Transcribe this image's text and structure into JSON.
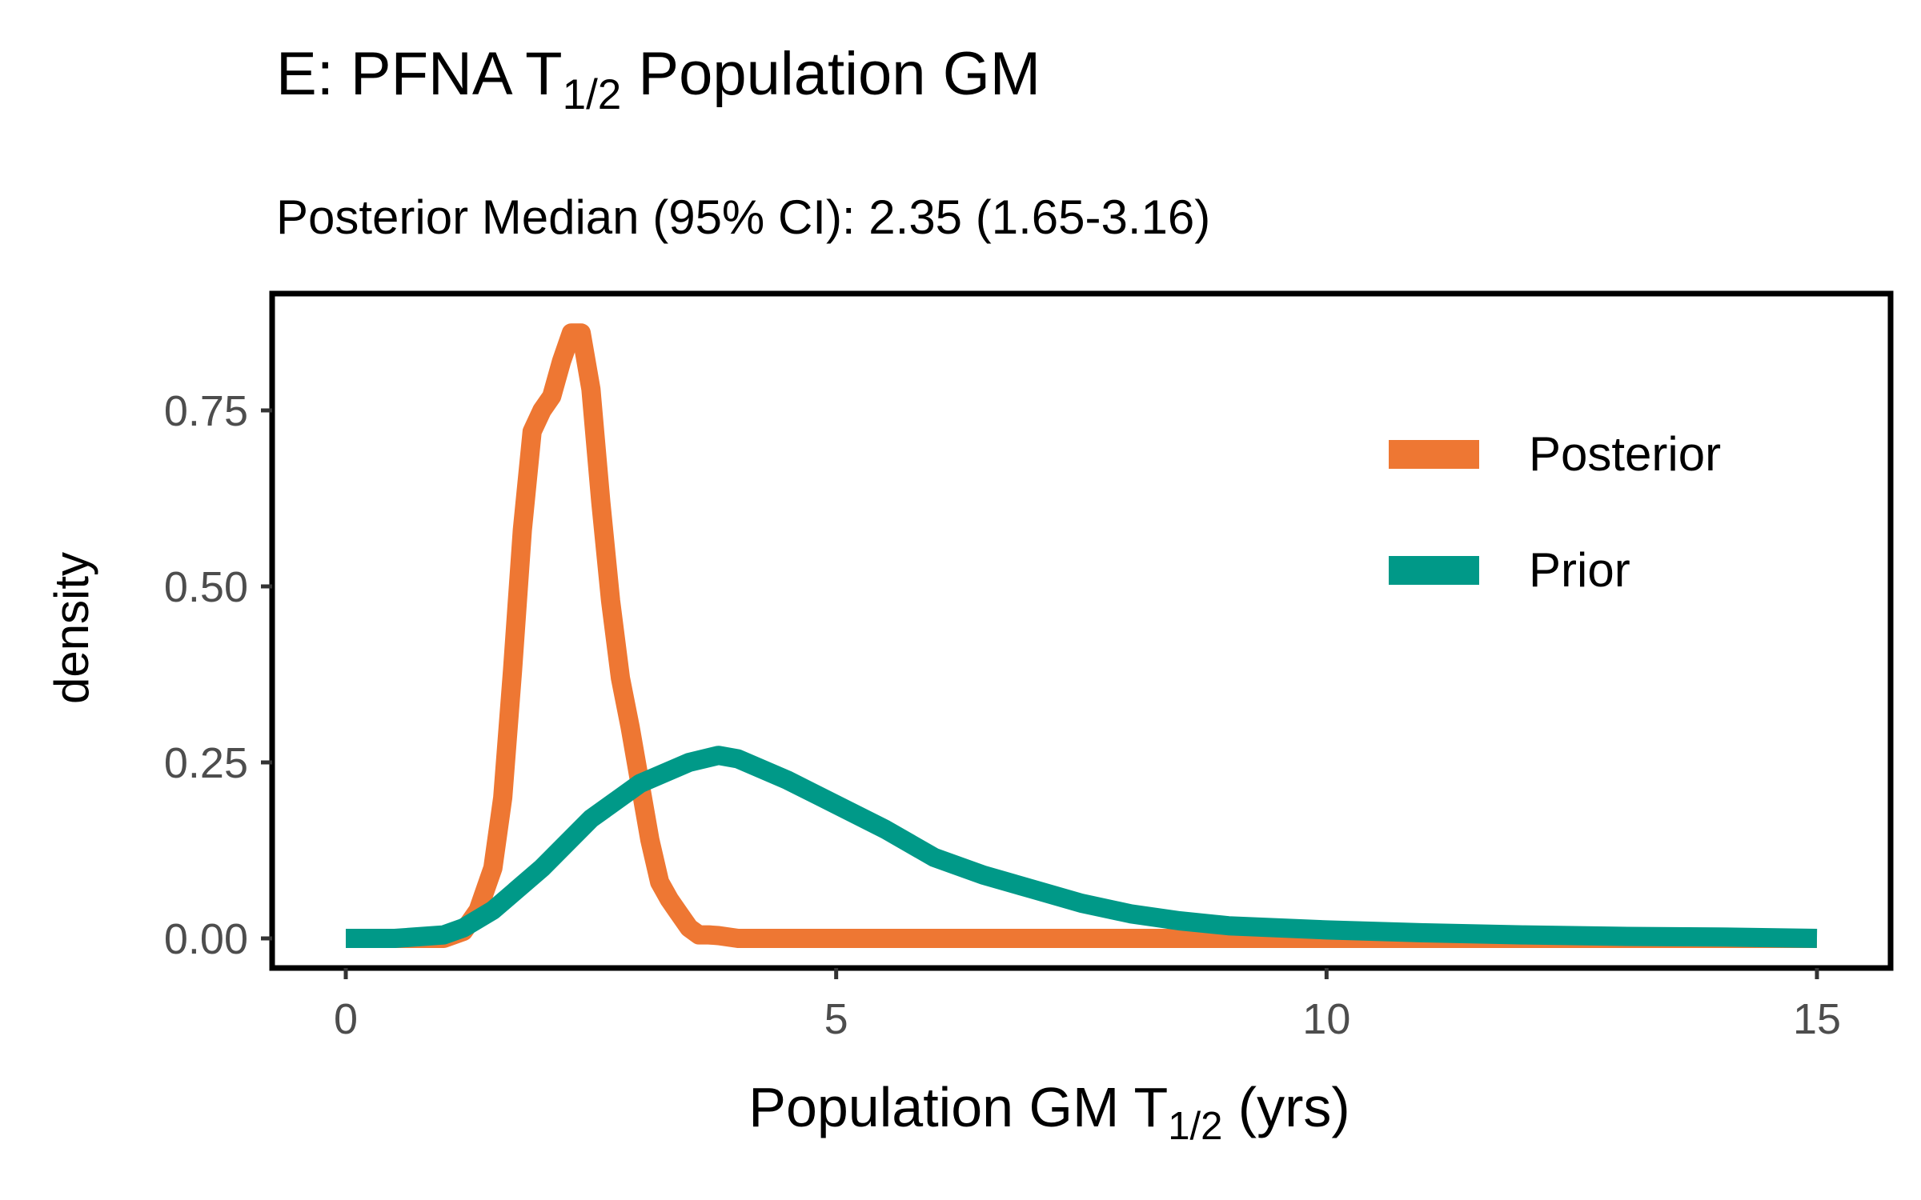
{
  "chart_data": {
    "type": "line",
    "title": {
      "prefix": "E: PFNA T",
      "sub": "1/2",
      "suffix": " Population GM"
    },
    "subtitle": "Posterior Median (95% CI): 2.35 (1.65-3.16)",
    "xlabel": {
      "prefix": "Population GM T",
      "sub": "1/2",
      "suffix": " (yrs)"
    },
    "ylabel": "density",
    "xlim": [
      0,
      15
    ],
    "ylim": [
      0,
      0.85
    ],
    "xticks": [
      0,
      5,
      10,
      15
    ],
    "xtick_labels": [
      "0",
      "5",
      "10",
      "15"
    ],
    "yticks": [
      0,
      0.25,
      0.5,
      0.75
    ],
    "ytick_labels": [
      "0.00",
      "0.25",
      "0.50",
      "0.75"
    ],
    "grid": false,
    "legend_position": "top-right",
    "series": [
      {
        "name": "Posterior",
        "color": "#EE7733",
        "x": [
          0,
          1.0,
          1.2,
          1.35,
          1.5,
          1.6,
          1.7,
          1.8,
          1.9,
          2.0,
          2.1,
          2.2,
          2.3,
          2.4,
          2.5,
          2.6,
          2.7,
          2.8,
          2.9,
          3.0,
          3.1,
          3.2,
          3.3,
          3.4,
          3.5,
          3.6,
          3.7,
          3.8,
          4.0,
          4.2,
          5.0,
          8.0,
          15.0
        ],
        "y": [
          0,
          0.0,
          0.01,
          0.04,
          0.1,
          0.2,
          0.38,
          0.58,
          0.72,
          0.75,
          0.77,
          0.82,
          0.86,
          0.86,
          0.78,
          0.62,
          0.48,
          0.37,
          0.3,
          0.22,
          0.14,
          0.08,
          0.055,
          0.035,
          0.015,
          0.005,
          0.005,
          0.004,
          0.0,
          0.0,
          0.0,
          0.0,
          0.0
        ]
      },
      {
        "name": "Prior",
        "color": "#009988",
        "x": [
          0,
          0.5,
          1.0,
          1.2,
          1.5,
          2.0,
          2.5,
          3.0,
          3.5,
          3.8,
          4.0,
          4.5,
          5.0,
          5.5,
          6.0,
          6.5,
          7.0,
          7.5,
          8.0,
          8.5,
          9.0,
          10.0,
          11.0,
          12.0,
          13.0,
          14.0,
          15.0
        ],
        "y": [
          0,
          0.0,
          0.005,
          0.015,
          0.04,
          0.1,
          0.17,
          0.22,
          0.25,
          0.26,
          0.255,
          0.225,
          0.19,
          0.155,
          0.115,
          0.09,
          0.07,
          0.05,
          0.035,
          0.025,
          0.018,
          0.012,
          0.008,
          0.005,
          0.003,
          0.002,
          0.0
        ]
      }
    ]
  }
}
